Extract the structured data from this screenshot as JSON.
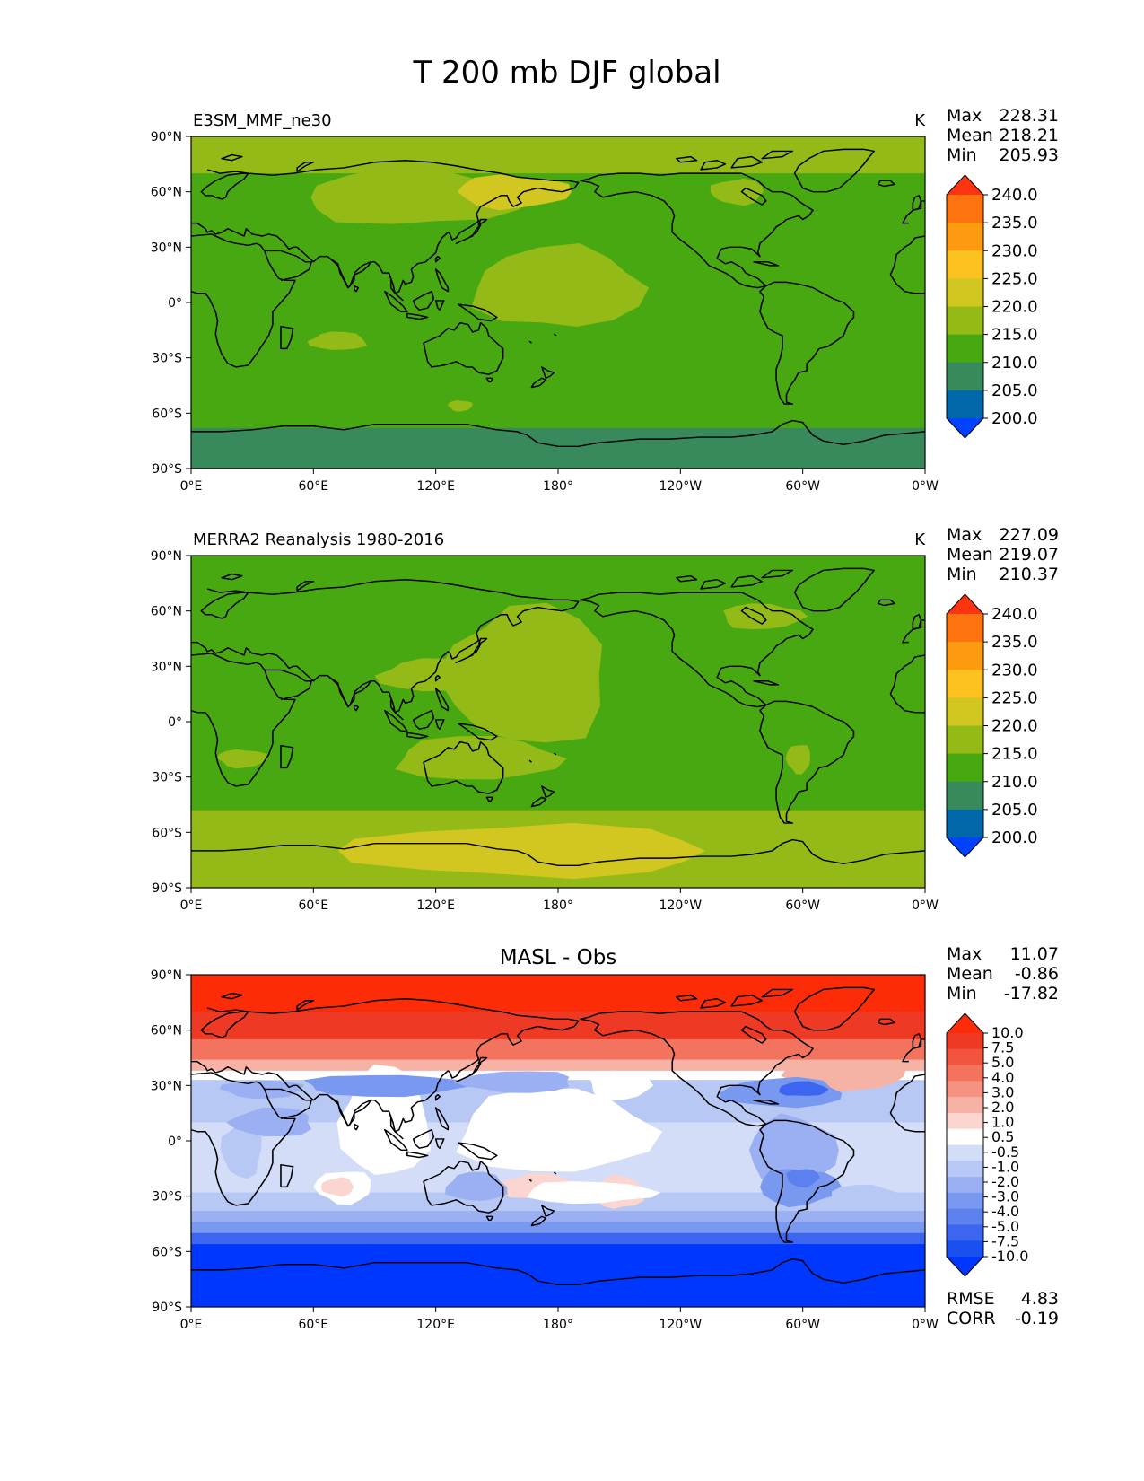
{
  "figure_title": "T 200 mb DJF global",
  "lat_ticks": [
    "90°N",
    "60°N",
    "30°N",
    "0°",
    "30°S",
    "60°S",
    "90°S"
  ],
  "lon_ticks": [
    "0°E",
    "60°E",
    "120°E",
    "180°",
    "120°W",
    "60°W",
    "0°W"
  ],
  "colors": {
    "temp_levels": [
      "#0042ff",
      "#0068a8",
      "#388a5c",
      "#48a812",
      "#94ba18",
      "#d2c720",
      "#fcc220",
      "#fc9a10",
      "#fc7310",
      "#fc3510"
    ],
    "diff_levels": [
      "#0037ff",
      "#1a4ff0",
      "#3d66f0",
      "#5c80ee",
      "#7998f0",
      "#9bb0f2",
      "#b8c8f5",
      "#d4ddf8",
      "#ffffff",
      "#fbd5d0",
      "#f7b2a6",
      "#f59282",
      "#f3735e",
      "#f15540",
      "#ee3a24",
      "#fc2c08"
    ]
  },
  "chart_data": [
    {
      "type": "heatmap",
      "title": "E3SM_MMF_ne30",
      "units": "K",
      "stats": {
        "labels": [
          "Max",
          "Mean",
          "Min"
        ],
        "values": [
          "228.31",
          "218.21",
          "205.93"
        ]
      },
      "colorbar_ticks": [
        "240.0",
        "235.0",
        "230.0",
        "225.0",
        "220.0",
        "215.0",
        "210.0",
        "205.0",
        "200.0"
      ],
      "xlim": [
        0,
        360
      ],
      "ylim": [
        -90,
        90
      ],
      "zonal_bands": [
        {
          "lat": [
            70,
            90
          ],
          "value": 219
        },
        {
          "lat": [
            -55,
            70
          ],
          "value": 214
        },
        {
          "lat": [
            -68,
            -55
          ],
          "value": 212
        },
        {
          "lat": [
            -90,
            -68
          ],
          "value": 208
        }
      ],
      "blobs": [
        {
          "lon": 180,
          "lat": 8,
          "rlon": 42,
          "rlat": 22,
          "value": 219
        },
        {
          "lon": 110,
          "lat": 57,
          "rlon": 55,
          "rlat": 15,
          "value": 219
        },
        {
          "lon": 158,
          "lat": 60,
          "rlon": 28,
          "rlat": 9,
          "value": 223
        },
        {
          "lon": 275,
          "lat": 80,
          "rlon": 28,
          "rlat": 8,
          "value": 219
        },
        {
          "lon": 268,
          "lat": 60,
          "rlon": 13,
          "rlat": 7,
          "value": 219
        },
        {
          "lon": 325,
          "lat": 33,
          "rlon": 30,
          "rlat": 10,
          "value": 212
        },
        {
          "lon": 72,
          "lat": -21,
          "rlon": 14,
          "rlat": 5,
          "value": 219
        },
        {
          "lon": 22,
          "lat": -41,
          "rlon": 22,
          "rlat": 4,
          "value": 212
        },
        {
          "lon": 350,
          "lat": -41,
          "rlon": 12,
          "rlat": 3,
          "value": 212
        },
        {
          "lon": 132,
          "lat": -56,
          "rlon": 6,
          "rlat": 3,
          "value": 219
        }
      ]
    },
    {
      "type": "heatmap",
      "title": "MERRA2 Reanalysis 1980-2016",
      "units": "K",
      "stats": {
        "labels": [
          "Max",
          "Mean",
          "Min"
        ],
        "values": [
          "227.09",
          "219.07",
          "210.37"
        ]
      },
      "colorbar_ticks": [
        "240.0",
        "235.0",
        "230.0",
        "225.0",
        "220.0",
        "215.0",
        "210.0",
        "205.0",
        "200.0"
      ],
      "xlim": [
        0,
        360
      ],
      "ylim": [
        -90,
        90
      ],
      "zonal_bands": [
        {
          "lat": [
            75,
            90
          ],
          "value": 212
        },
        {
          "lat": [
            -48,
            75
          ],
          "value": 214
        },
        {
          "lat": [
            -90,
            -48
          ],
          "value": 219
        }
      ],
      "blobs": [
        {
          "lon": 80,
          "lat": 65,
          "rlon": 80,
          "rlat": 18,
          "value": 212
        },
        {
          "lon": 332,
          "lat": 45,
          "rlon": 30,
          "rlat": 16,
          "value": 212
        },
        {
          "lon": 165,
          "lat": 25,
          "rlon": 40,
          "rlat": 38,
          "value": 219
        },
        {
          "lon": 120,
          "lat": 25,
          "rlon": 28,
          "rlat": 9,
          "value": 219
        },
        {
          "lon": 140,
          "lat": -20,
          "rlon": 40,
          "rlat": 12,
          "value": 219
        },
        {
          "lon": 280,
          "lat": 57,
          "rlon": 20,
          "rlat": 7,
          "value": 219
        },
        {
          "lon": 25,
          "lat": -20,
          "rlon": 12,
          "rlat": 5,
          "value": 219
        },
        {
          "lon": 298,
          "lat": -20,
          "rlon": 6,
          "rlat": 8,
          "value": 219
        },
        {
          "lon": 165,
          "lat": -70,
          "rlon": 90,
          "rlat": 14,
          "value": 222
        }
      ]
    },
    {
      "type": "heatmap",
      "title": "MASL - Obs",
      "units": "",
      "stats": {
        "labels": [
          "Max",
          "Mean",
          "Min"
        ],
        "values": [
          "11.07",
          "-0.86",
          "-17.82"
        ]
      },
      "colorbar_ticks": [
        "10.0",
        "7.5",
        "5.0",
        "4.0",
        "3.0",
        "2.0",
        "1.0",
        "0.5",
        "-0.5",
        "-1.0",
        "-2.0",
        "-3.0",
        "-4.0",
        "-5.0",
        "-7.5",
        "-10.0"
      ],
      "metrics": {
        "labels": [
          "RMSE",
          "CORR"
        ],
        "values": [
          "4.83",
          "-0.19"
        ]
      },
      "xlim": [
        0,
        360
      ],
      "ylim": [
        -90,
        90
      ],
      "zonal_bands": [
        {
          "lat": [
            70,
            90
          ],
          "value": 9
        },
        {
          "lat": [
            55,
            70
          ],
          "value": 6
        },
        {
          "lat": [
            44,
            55
          ],
          "value": 3.5
        },
        {
          "lat": [
            38,
            44
          ],
          "value": 1.5
        },
        {
          "lat": [
            33,
            38
          ],
          "value": 0
        },
        {
          "lat": [
            22,
            33
          ],
          "value": -1.5
        },
        {
          "lat": [
            10,
            22
          ],
          "value": -1.2
        },
        {
          "lat": [
            -10,
            10
          ],
          "value": -0.8
        },
        {
          "lat": [
            -28,
            -10
          ],
          "value": -0.7
        },
        {
          "lat": [
            -38,
            -28
          ],
          "value": -1.5
        },
        {
          "lat": [
            -44,
            -38
          ],
          "value": -2.5
        },
        {
          "lat": [
            -50,
            -44
          ],
          "value": -3.5
        },
        {
          "lat": [
            -56,
            -50
          ],
          "value": -6
        },
        {
          "lat": [
            -90,
            -56
          ],
          "value": -12
        }
      ],
      "blobs": [
        {
          "lon": 95,
          "lat": 10,
          "rlon": 22,
          "rlat": 30,
          "value": 0
        },
        {
          "lon": 178,
          "lat": 5,
          "rlon": 48,
          "rlat": 23,
          "value": 0
        },
        {
          "lon": 210,
          "lat": 30,
          "rlon": 15,
          "rlat": 8,
          "value": 0
        },
        {
          "lon": 320,
          "lat": 35,
          "rlon": 30,
          "rlat": 8,
          "value": 1
        },
        {
          "lon": 75,
          "lat": -25,
          "rlon": 14,
          "rlat": 9,
          "value": 0
        },
        {
          "lon": 72,
          "lat": -25,
          "rlon": 8,
          "rlat": 5,
          "value": 0.8
        },
        {
          "lon": 170,
          "lat": -25,
          "rlon": 20,
          "rlat": 7,
          "value": 0.8
        },
        {
          "lon": 210,
          "lat": -28,
          "rlon": 12,
          "rlat": 9,
          "value": 0.8
        },
        {
          "lon": 195,
          "lat": -28,
          "rlon": 32,
          "rlat": 6,
          "value": 0
        },
        {
          "lon": 95,
          "lat": 30,
          "rlon": 40,
          "rlat": 6,
          "value": -3.2
        },
        {
          "lon": 35,
          "lat": 28,
          "rlon": 20,
          "rlat": 5,
          "value": -2.5
        },
        {
          "lon": 160,
          "lat": 32,
          "rlon": 28,
          "rlat": 6,
          "value": -2.5
        },
        {
          "lon": 290,
          "lat": 26,
          "rlon": 30,
          "rlat": 8,
          "value": -3.5
        },
        {
          "lon": 300,
          "lat": 28,
          "rlon": 12,
          "rlat": 4,
          "value": -5.5
        },
        {
          "lon": 295,
          "lat": -5,
          "rlon": 22,
          "rlat": 18,
          "value": -2.5
        },
        {
          "lon": 298,
          "lat": -25,
          "rlon": 20,
          "rlat": 10,
          "value": -3.5
        },
        {
          "lon": 300,
          "lat": -20,
          "rlon": 8,
          "rlat": 5,
          "value": -4.5
        },
        {
          "lon": 25,
          "lat": -5,
          "rlon": 10,
          "rlat": 15,
          "value": -1.5
        },
        {
          "lon": 40,
          "lat": 10,
          "rlon": 20,
          "rlat": 8,
          "value": -2.5
        },
        {
          "lon": 140,
          "lat": -25,
          "rlon": 15,
          "rlat": 8,
          "value": -2.5
        },
        {
          "lon": 330,
          "lat": -30,
          "rlon": 18,
          "rlat": 6,
          "value": -1.5
        }
      ]
    }
  ]
}
